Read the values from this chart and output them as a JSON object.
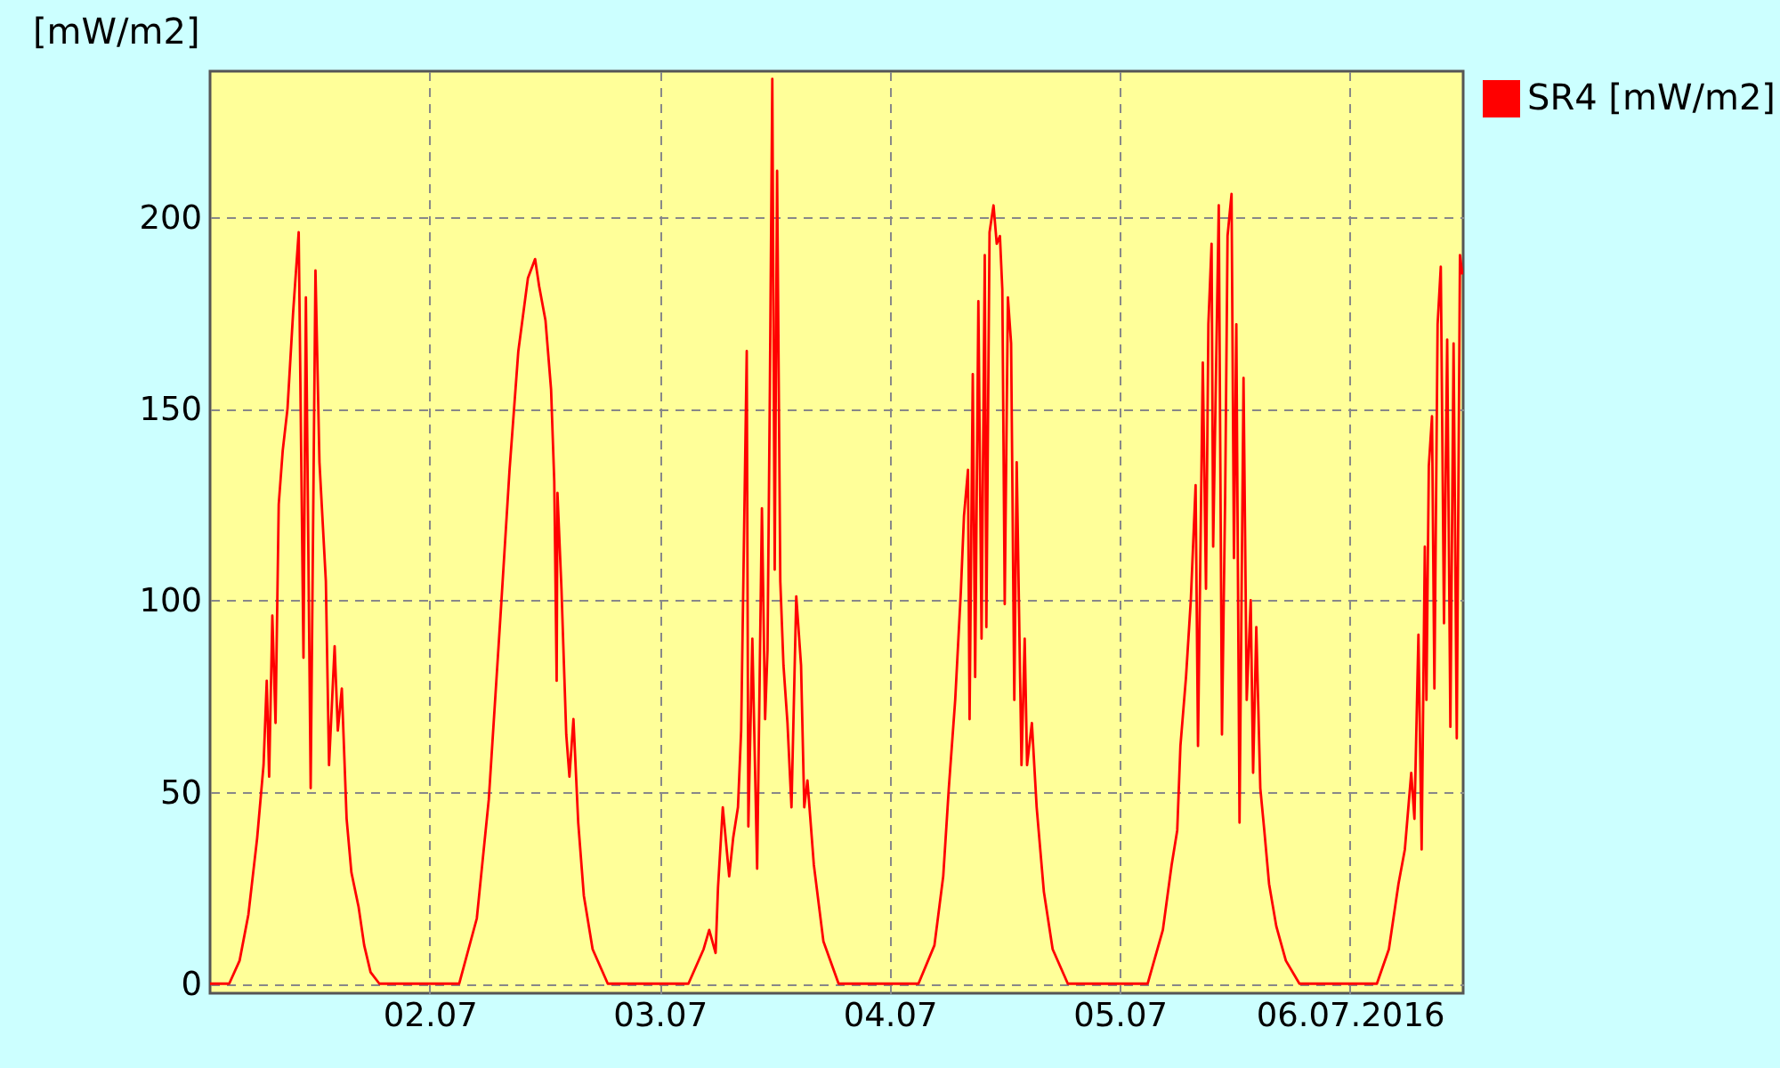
{
  "chart_data": {
    "type": "line",
    "ylabel": "[mW/m2]",
    "x": [
      "2016-07-01T01:05",
      "2016-07-01T03:05",
      "2016-07-01T04:10",
      "2016-07-01T05:05",
      "2016-07-01T06:00",
      "2016-07-01T06:40",
      "2016-07-01T07:00",
      "2016-07-01T07:15",
      "2016-07-01T07:35",
      "2016-07-01T07:55",
      "2016-07-01T08:15",
      "2016-07-01T08:40",
      "2016-07-01T09:10",
      "2016-07-01T09:45",
      "2016-07-01T10:20",
      "2016-07-01T10:50",
      "2016-07-01T11:05",
      "2016-07-01T11:35",
      "2016-07-01T12:05",
      "2016-07-01T12:30",
      "2016-07-01T13:10",
      "2016-07-01T13:30",
      "2016-07-01T14:05",
      "2016-07-01T14:25",
      "2016-07-01T14:50",
      "2016-07-01T15:20",
      "2016-07-01T15:50",
      "2016-07-01T16:35",
      "2016-07-01T17:10",
      "2016-07-01T17:50",
      "2016-07-01T18:45",
      "2016-07-02T03:05",
      "2016-07-02T04:55",
      "2016-07-02T06:10",
      "2016-07-02T07:25",
      "2016-07-02T08:20",
      "2016-07-02T09:15",
      "2016-07-02T10:15",
      "2016-07-02T11:00",
      "2016-07-02T11:25",
      "2016-07-02T12:05",
      "2016-07-02T12:40",
      "2016-07-02T13:00",
      "2016-07-02T13:15",
      "2016-07-02T13:20",
      "2016-07-02T13:45",
      "2016-07-02T14:15",
      "2016-07-02T14:35",
      "2016-07-02T15:00",
      "2016-07-02T15:30",
      "2016-07-02T16:05",
      "2016-07-02T17:00",
      "2016-07-02T18:35",
      "2016-07-03T03:00",
      "2016-07-03T04:35",
      "2016-07-03T05:10",
      "2016-07-03T05:50",
      "2016-07-03T06:05",
      "2016-07-03T06:35",
      "2016-07-03T07:15",
      "2016-07-03T07:40",
      "2016-07-03T08:10",
      "2016-07-03T08:30",
      "2016-07-03T09:05",
      "2016-07-03T09:15",
      "2016-07-03T09:40",
      "2016-07-03T10:10",
      "2016-07-03T10:40",
      "2016-07-03T11:00",
      "2016-07-03T11:15",
      "2016-07-03T11:30",
      "2016-07-03T11:45",
      "2016-07-03T12:00",
      "2016-07-03T12:15",
      "2016-07-03T12:35",
      "2016-07-03T12:55",
      "2016-07-03T13:20",
      "2016-07-03T13:45",
      "2016-07-03T14:15",
      "2016-07-03T14:45",
      "2016-07-03T15:05",
      "2016-07-03T15:25",
      "2016-07-03T16:05",
      "2016-07-03T17:05",
      "2016-07-03T18:40",
      "2016-07-04T03:00",
      "2016-07-04T04:40",
      "2016-07-04T05:35",
      "2016-07-04T06:10",
      "2016-07-04T06:50",
      "2016-07-04T07:25",
      "2016-07-04T07:45",
      "2016-07-04T08:10",
      "2016-07-04T08:20",
      "2016-07-04T08:40",
      "2016-07-04T08:55",
      "2016-07-04T09:15",
      "2016-07-04T09:35",
      "2016-07-04T09:55",
      "2016-07-04T10:05",
      "2016-07-04T10:25",
      "2016-07-04T10:50",
      "2016-07-04T11:10",
      "2016-07-04T11:30",
      "2016-07-04T11:45",
      "2016-07-04T12:00",
      "2016-07-04T12:20",
      "2016-07-04T12:40",
      "2016-07-04T13:00",
      "2016-07-04T13:15",
      "2016-07-04T13:45",
      "2016-07-04T14:05",
      "2016-07-04T14:20",
      "2016-07-04T14:50",
      "2016-07-04T15:20",
      "2016-07-04T16:05",
      "2016-07-04T17:00",
      "2016-07-04T18:35",
      "2016-07-05T02:55",
      "2016-07-05T04:30",
      "2016-07-05T05:25",
      "2016-07-05T06:00",
      "2016-07-05T06:20",
      "2016-07-05T06:55",
      "2016-07-05T07:25",
      "2016-07-05T07:55",
      "2016-07-05T08:10",
      "2016-07-05T08:40",
      "2016-07-05T09:00",
      "2016-07-05T09:15",
      "2016-07-05T09:35",
      "2016-07-05T09:45",
      "2016-07-05T10:20",
      "2016-07-05T10:40",
      "2016-07-05T11:00",
      "2016-07-05T11:15",
      "2016-07-05T11:40",
      "2016-07-05T11:55",
      "2016-07-05T12:10",
      "2016-07-05T12:30",
      "2016-07-05T12:55",
      "2016-07-05T13:15",
      "2016-07-05T13:40",
      "2016-07-05T13:55",
      "2016-07-05T14:15",
      "2016-07-05T14:40",
      "2016-07-05T15:05",
      "2016-07-05T15:35",
      "2016-07-05T16:20",
      "2016-07-05T17:20",
      "2016-07-05T18:45",
      "2016-07-06T02:50",
      "2016-07-06T04:05",
      "2016-07-06T05:05",
      "2016-07-06T05:45",
      "2016-07-06T06:25",
      "2016-07-06T06:45",
      "2016-07-06T07:10",
      "2016-07-06T07:30",
      "2016-07-06T07:50",
      "2016-07-06T08:00",
      "2016-07-06T08:15",
      "2016-07-06T08:35",
      "2016-07-06T08:50",
      "2016-07-06T09:10",
      "2016-07-06T09:30",
      "2016-07-06T09:50",
      "2016-07-06T10:10",
      "2016-07-06T10:30",
      "2016-07-06T10:50",
      "2016-07-06T11:10",
      "2016-07-06T11:30",
      "2016-07-06T11:45"
    ],
    "series": [
      {
        "name": "SR4 [mW/m2]",
        "color": "#ff0000",
        "values": [
          0,
          0,
          6,
          18,
          38,
          57,
          79,
          54,
          96,
          68,
          125,
          139,
          150,
          175,
          196,
          85,
          179,
          51,
          186,
          136,
          105,
          57,
          88,
          66,
          77,
          43,
          29,
          20,
          10,
          3,
          0,
          0,
          17,
          48,
          97,
          134,
          165,
          184,
          189,
          182,
          173,
          155,
          131,
          79,
          128,
          103,
          65,
          54,
          69,
          42,
          23,
          9,
          0,
          0,
          9,
          14,
          8,
          25,
          46,
          28,
          38,
          46,
          66,
          165,
          41,
          90,
          30,
          124,
          69,
          87,
          156,
          236,
          108,
          212,
          105,
          83,
          68,
          46,
          101,
          83,
          46,
          53,
          31,
          11,
          0,
          0,
          10,
          28,
          51,
          74,
          102,
          122,
          134,
          69,
          159,
          80,
          178,
          90,
          190,
          93,
          196,
          203,
          193,
          195,
          181,
          99,
          179,
          167,
          74,
          136,
          57,
          90,
          57,
          68,
          46,
          24,
          9,
          0,
          0,
          14,
          31,
          40,
          62,
          80,
          100,
          130,
          62,
          162,
          103,
          172,
          193,
          114,
          203,
          65,
          127,
          195,
          206,
          111,
          172,
          42,
          158,
          74,
          100,
          55,
          93,
          51,
          40,
          26,
          15,
          6,
          0,
          0,
          9,
          26,
          35,
          55,
          43,
          91,
          35,
          114,
          74,
          135,
          148,
          77,
          172,
          187,
          94,
          168,
          67,
          167,
          64,
          190,
          185
        ]
      }
    ],
    "xlim": [
      "2016-07-01T01:05",
      "2016-07-06T11:50"
    ],
    "xticks": [
      {
        "value": "2016-07-02",
        "label": "02.07"
      },
      {
        "value": "2016-07-03",
        "label": "03.07"
      },
      {
        "value": "2016-07-04",
        "label": "04.07"
      },
      {
        "value": "2016-07-05",
        "label": "05.07"
      },
      {
        "value": "2016-07-06",
        "label": "06.07.2016"
      }
    ],
    "ylim": [
      -2.5,
      238
    ],
    "yticks": [
      0,
      50,
      100,
      150,
      200
    ],
    "grid": true,
    "legend": "top right"
  }
}
